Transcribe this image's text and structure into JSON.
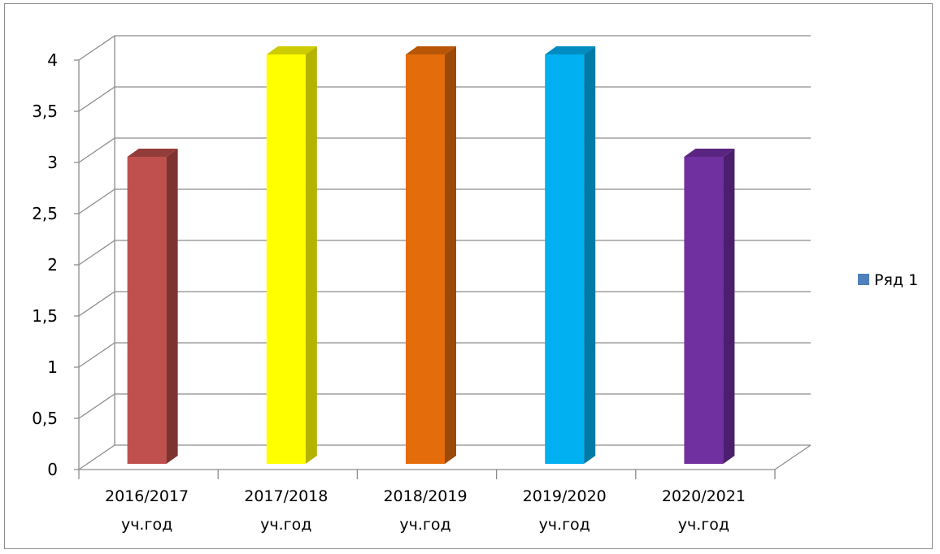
{
  "chart_data": {
    "type": "bar",
    "title": "",
    "xlabel": "",
    "ylabel": "",
    "categories": [
      [
        "2016/2017",
        "уч.год"
      ],
      [
        "2017/2018",
        "уч.год"
      ],
      [
        "2018/2019",
        "уч.год"
      ],
      [
        "2019/2020",
        "уч.год"
      ],
      [
        "2020/2021",
        "уч.год"
      ]
    ],
    "series": [
      {
        "name": "Ряд 1",
        "values": [
          3,
          4,
          4,
          4,
          3
        ]
      }
    ],
    "bar_colors": [
      "#C0504D",
      "#FFFF00",
      "#E46C0A",
      "#00B0F0",
      "#7030A0"
    ],
    "bar_side_colors": [
      "#7F3331",
      "#B3B300",
      "#9C4A07",
      "#007AA6",
      "#4B1F6D"
    ],
    "bar_top_colors": [
      "#933D3A",
      "#CCCC00",
      "#B85608",
      "#008CC0",
      "#5A2580"
    ],
    "legend_color": "#4F81BD",
    "y_ticks": [
      "0",
      "0,5",
      "1",
      "1,5",
      "2",
      "2,5",
      "3",
      "3,5",
      "4"
    ],
    "ylim": [
      0,
      4
    ],
    "grid": true,
    "legend_position": "right"
  }
}
